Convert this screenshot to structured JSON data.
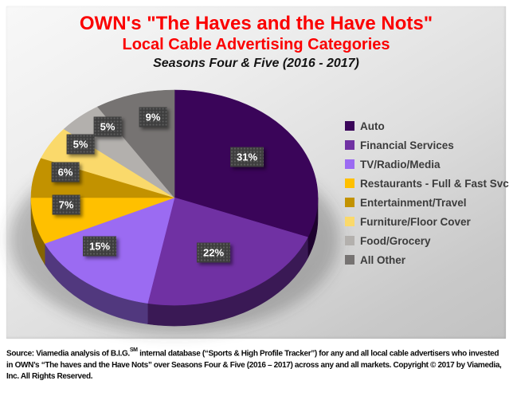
{
  "header": {
    "title_line1": "OWN's \"The Haves and the Have Nots\"",
    "title_line2": "Local Cable Advertising Categories",
    "title_line3": "Seasons Four & Five (2016 - 2017)"
  },
  "chart_data": {
    "type": "pie",
    "effect": "3d",
    "title": "OWN's \"The Haves and the Have Nots\"",
    "subtitle": "Local Cable Advertising Categories",
    "period": "Seasons Four & Five (2016 - 2017)",
    "start_angle_deg": -90,
    "direction": "clockwise",
    "legend_position": "right",
    "categories": [
      "Auto",
      "Financial Services",
      "TV/Radio/Media",
      "Restaurants - Full & Fast Svc",
      "Entertainment/Travel",
      "Furniture/Floor Cover",
      "Food/Grocery",
      "All Other"
    ],
    "values": [
      31,
      22,
      15,
      7,
      6,
      5,
      5,
      9
    ],
    "labels": [
      "31%",
      "22%",
      "15%",
      "7%",
      "6%",
      "5%",
      "5%",
      "9%"
    ],
    "colors": [
      "#3A0559",
      "#7031A3",
      "#9B6BF2",
      "#FFC000",
      "#C29200",
      "#FAD96B",
      "#B3B0AD",
      "#767372"
    ],
    "label_box_color": "#3E3E3E",
    "label_text_color": "#FFFFFF"
  },
  "footer": {
    "line1_pre": "Source: Viamedia analysis of B.I.G.",
    "line1_sup": "SM",
    "line1_post": "  internal database (“Sports & High Profile Tracker”) for any and all local cable advertisers who invested",
    "line2": "in OWN’s “The haves and the Have Nots” over Seasons Four & Five (2016 – 2017) across any and all markets. Copyright © 2017 by Viamedia,",
    "line3": "Inc. All Rights Reserved."
  }
}
